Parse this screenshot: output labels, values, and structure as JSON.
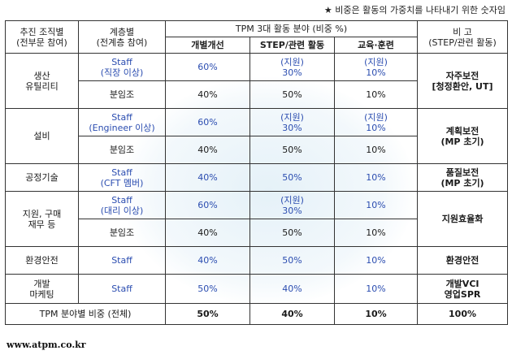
{
  "note": "★ 비중은 활동의 가중치를 나타내기 위한 숫자임",
  "headers": {
    "col1": [
      "추진 조직별",
      "(전부문 참여)"
    ],
    "col2": [
      "계층별",
      "(전계층 참여)"
    ],
    "tpm": "TPM 3대 활동 분야 (비중 %)",
    "gaebyeol": "개별개선",
    "step": "STEP/관련 활동",
    "edu": "교육·훈련",
    "remark": [
      "비 고",
      "(STEP/관련 활동)"
    ]
  },
  "rows": [
    {
      "org": [
        "생산",
        "유틸리티"
      ],
      "sub": [
        {
          "level": [
            "Staff",
            "(직장 이상)"
          ],
          "g": "60%",
          "s": [
            "(지원)",
            "30%"
          ],
          "e": [
            "(지원)",
            "10%"
          ]
        },
        {
          "level": [
            "분임조"
          ],
          "g": "40%",
          "s": [
            "50%"
          ],
          "e": [
            "10%"
          ]
        }
      ],
      "remark": [
        "자주보전",
        "[청정환안, UT]"
      ]
    },
    {
      "org": [
        "설비"
      ],
      "sub": [
        {
          "level": [
            "Staff",
            "(Engineer 이상)"
          ],
          "g": "60%",
          "s": [
            "(지원)",
            "30%"
          ],
          "e": [
            "(지원)",
            "10%"
          ]
        },
        {
          "level": [
            "분임조"
          ],
          "g": "40%",
          "s": [
            "50%"
          ],
          "e": [
            "10%"
          ]
        }
      ],
      "remark": [
        "계획보전",
        "(MP 초기)"
      ]
    },
    {
      "org": [
        "공정기술"
      ],
      "sub": [
        {
          "level": [
            "Staff",
            "(CFT 멤버)"
          ],
          "g": "40%",
          "s": [
            "50%"
          ],
          "e": [
            "10%"
          ]
        }
      ],
      "remark": [
        "품질보전",
        "(MP 초기)"
      ]
    },
    {
      "org": [
        "지원, 구매",
        "재무 등"
      ],
      "sub": [
        {
          "level": [
            "Staff",
            "(대리 이상)"
          ],
          "g": "60%",
          "s": [
            "(지원)",
            "30%"
          ],
          "e": [
            "10%"
          ]
        },
        {
          "level": [
            "분임조"
          ],
          "g": "40%",
          "s": [
            "50%"
          ],
          "e": [
            "10%"
          ]
        }
      ],
      "remark": [
        "지원효율화"
      ]
    },
    {
      "org": [
        "환경안전"
      ],
      "sub": [
        {
          "level": [
            "Staff"
          ],
          "g": "40%",
          "s": [
            "50%"
          ],
          "e": [
            "10%"
          ]
        }
      ],
      "remark": [
        "환경안전"
      ]
    },
    {
      "org": [
        "개발",
        "마케팅"
      ],
      "sub": [
        {
          "level": [
            "Staff"
          ],
          "g": "50%",
          "s": [
            "40%"
          ],
          "e": [
            "10%"
          ]
        }
      ],
      "remark": [
        "개발VCI",
        "영업SPR"
      ]
    }
  ],
  "total": {
    "label": "TPM 분야별 비중 (전체)",
    "g": "50%",
    "s": "40%",
    "e": "10%",
    "remark": "100%"
  },
  "url": "www.atpm.co.kr"
}
